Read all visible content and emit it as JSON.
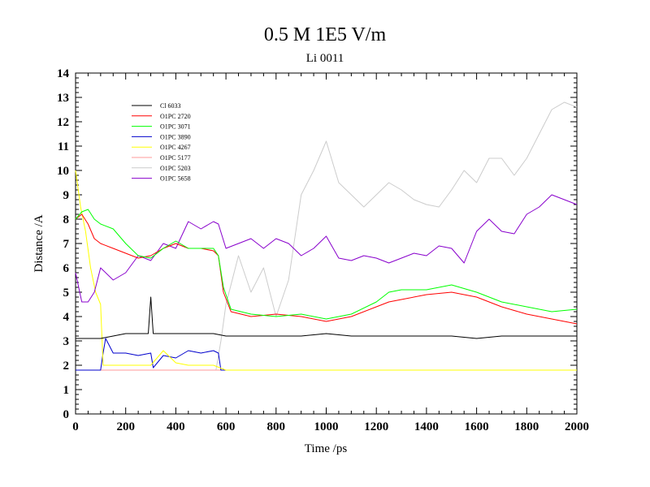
{
  "chart_data": {
    "type": "line",
    "title": "0.5 M 1E5 V/m",
    "subtitle": "Li 0011",
    "xlabel": "Time /ps",
    "ylabel": "Distance /A",
    "xlim": [
      0,
      2000
    ],
    "ylim": [
      0,
      14
    ],
    "xticks": [
      0,
      200,
      400,
      600,
      800,
      1000,
      1200,
      1400,
      1600,
      1800,
      2000
    ],
    "yticks": [
      0,
      1,
      2,
      3,
      4,
      5,
      6,
      7,
      8,
      9,
      10,
      11,
      12,
      13,
      14
    ],
    "grid": false,
    "legend_position": "top-left",
    "series": [
      {
        "name": "Cl 6033",
        "color": "#000000",
        "x": [
          0,
          50,
          100,
          150,
          200,
          250,
          290,
          300,
          310,
          350,
          400,
          450,
          500,
          550,
          600,
          700,
          800,
          900,
          1000,
          1100,
          1200,
          1300,
          1400,
          1500,
          1600,
          1700,
          1800,
          1900,
          2000
        ],
        "y": [
          3.1,
          3.1,
          3.1,
          3.2,
          3.3,
          3.3,
          3.3,
          4.8,
          3.3,
          3.3,
          3.3,
          3.3,
          3.3,
          3.3,
          3.2,
          3.2,
          3.2,
          3.2,
          3.3,
          3.2,
          3.2,
          3.2,
          3.2,
          3.2,
          3.1,
          3.2,
          3.2,
          3.2,
          3.2
        ]
      },
      {
        "name": "O1PC 2720",
        "color": "#ff0000",
        "x": [
          0,
          25,
          50,
          75,
          100,
          150,
          200,
          250,
          300,
          350,
          400,
          450,
          500,
          550,
          570,
          590,
          620,
          700,
          800,
          900,
          1000,
          1100,
          1200,
          1250,
          1300,
          1400,
          1500,
          1600,
          1700,
          1800,
          1900,
          2000
        ],
        "y": [
          8.0,
          8.2,
          7.8,
          7.2,
          7.0,
          6.8,
          6.6,
          6.4,
          6.5,
          6.8,
          7.0,
          6.8,
          6.8,
          6.7,
          6.5,
          5.0,
          4.2,
          4.0,
          4.1,
          4.0,
          3.8,
          4.0,
          4.4,
          4.6,
          4.7,
          4.9,
          5.0,
          4.8,
          4.4,
          4.1,
          3.9,
          3.7
        ]
      },
      {
        "name": "O1PC 3071",
        "color": "#00ff00",
        "x": [
          0,
          25,
          50,
          75,
          100,
          150,
          200,
          250,
          300,
          350,
          400,
          450,
          500,
          550,
          570,
          590,
          620,
          700,
          800,
          900,
          1000,
          1100,
          1200,
          1250,
          1300,
          1400,
          1500,
          1600,
          1700,
          1800,
          1900,
          2000
        ],
        "y": [
          8.0,
          8.3,
          8.4,
          8.0,
          7.8,
          7.6,
          7.0,
          6.5,
          6.4,
          6.8,
          7.1,
          6.8,
          6.8,
          6.8,
          6.5,
          5.2,
          4.3,
          4.1,
          4.0,
          4.1,
          3.9,
          4.1,
          4.6,
          5.0,
          5.1,
          5.1,
          5.3,
          5.0,
          4.6,
          4.4,
          4.2,
          4.3
        ]
      },
      {
        "name": "O1PC 3890",
        "color": "#0000cc",
        "x": [
          0,
          50,
          100,
          110,
          120,
          150,
          200,
          250,
          300,
          310,
          350,
          400,
          450,
          500,
          550,
          570,
          580,
          700,
          900,
          1100,
          1300,
          1500,
          1700,
          1900,
          2000
        ],
        "y": [
          1.8,
          1.8,
          1.8,
          2.5,
          3.1,
          2.5,
          2.5,
          2.4,
          2.5,
          1.9,
          2.4,
          2.3,
          2.6,
          2.5,
          2.6,
          2.5,
          1.8,
          1.8,
          1.8,
          1.8,
          1.8,
          1.8,
          1.8,
          1.8,
          1.8
        ]
      },
      {
        "name": "O1PC 4267",
        "color": "#ffff00",
        "x": [
          0,
          20,
          40,
          60,
          80,
          100,
          110,
          150,
          200,
          250,
          300,
          350,
          400,
          450,
          500,
          550,
          600,
          800,
          1000,
          1200,
          1400,
          1600,
          1800,
          2000
        ],
        "y": [
          10.0,
          8.5,
          7.5,
          6.0,
          5.0,
          4.5,
          2.0,
          2.0,
          2.0,
          2.0,
          2.0,
          2.6,
          2.1,
          2.0,
          2.0,
          2.0,
          1.8,
          1.8,
          1.8,
          1.8,
          1.8,
          1.8,
          1.8,
          1.8
        ]
      },
      {
        "name": "O1PC 5177",
        "color": "#ff9999",
        "x": [
          0,
          200,
          400,
          600,
          800,
          1000,
          1200,
          1400,
          1600,
          1800,
          2000
        ],
        "y": [
          1.8,
          1.8,
          1.8,
          1.8,
          1.8,
          1.8,
          1.8,
          1.8,
          1.8,
          1.8,
          1.8
        ]
      },
      {
        "name": "O1PC 5203",
        "color": "#cccccc",
        "x": [
          0,
          200,
          400,
          560,
          580,
          600,
          650,
          700,
          750,
          800,
          850,
          900,
          950,
          1000,
          1050,
          1100,
          1150,
          1200,
          1250,
          1300,
          1350,
          1400,
          1450,
          1500,
          1550,
          1600,
          1650,
          1700,
          1750,
          1800,
          1850,
          1900,
          1950,
          2000
        ],
        "y": [
          1.8,
          1.8,
          1.8,
          1.8,
          3.0,
          4.5,
          6.5,
          5.0,
          6.0,
          4.0,
          5.5,
          9.0,
          10.0,
          11.2,
          9.5,
          9.0,
          8.5,
          9.0,
          9.5,
          9.2,
          8.8,
          8.6,
          8.5,
          9.2,
          10.0,
          9.5,
          10.5,
          10.5,
          9.8,
          10.5,
          11.5,
          12.5,
          12.8,
          12.6
        ]
      },
      {
        "name": "O1PC 5658",
        "color": "#8800cc",
        "x": [
          0,
          25,
          50,
          75,
          100,
          150,
          200,
          250,
          300,
          350,
          400,
          450,
          500,
          550,
          570,
          600,
          700,
          750,
          800,
          850,
          900,
          950,
          1000,
          1050,
          1100,
          1150,
          1200,
          1250,
          1300,
          1350,
          1400,
          1450,
          1500,
          1550,
          1600,
          1650,
          1700,
          1750,
          1800,
          1850,
          1900,
          1950,
          2000
        ],
        "y": [
          5.8,
          4.6,
          4.6,
          5.0,
          6.0,
          5.5,
          5.8,
          6.5,
          6.3,
          7.0,
          6.8,
          7.9,
          7.6,
          7.9,
          7.8,
          6.8,
          7.2,
          6.8,
          7.2,
          7.0,
          6.5,
          6.8,
          7.3,
          6.4,
          6.3,
          6.5,
          6.4,
          6.2,
          6.4,
          6.6,
          6.5,
          6.9,
          6.8,
          6.2,
          7.5,
          8.0,
          7.5,
          7.4,
          8.2,
          8.5,
          9.0,
          8.8,
          8.6
        ]
      }
    ]
  }
}
